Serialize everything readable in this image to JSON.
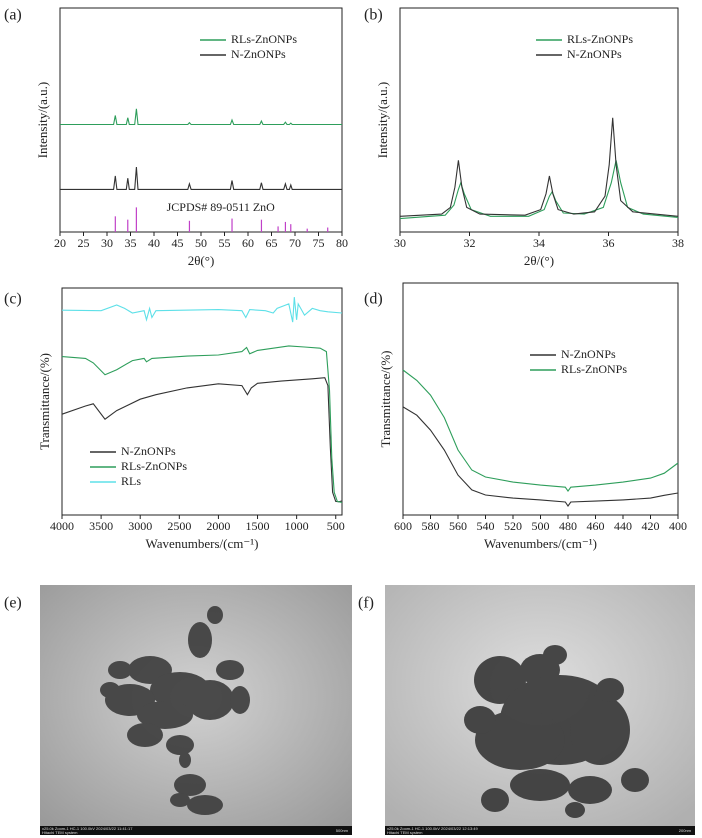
{
  "chart_data": [
    {
      "type": "line",
      "label": "(a)",
      "xlabel": "2θ(°)",
      "ylabel": "Intensity/(a.u.)",
      "xlim": [
        20,
        80
      ],
      "ylim": [
        0,
        100
      ],
      "xticks": [
        20,
        25,
        30,
        35,
        40,
        45,
        50,
        55,
        60,
        65,
        70,
        75,
        80
      ],
      "series": [
        {
          "name": "RLs-ZnONPs",
          "color": "#2e9e5b",
          "x": [
            20,
            31.4,
            31.77,
            32.1,
            34.1,
            34.42,
            34.75,
            35.9,
            36.25,
            36.6,
            47.2,
            47.54,
            47.9,
            56.25,
            56.6,
            56.95,
            62.5,
            62.86,
            63.2,
            67.6,
            67.96,
            68.3,
            68.8,
            69.1,
            69.4,
            80
          ],
          "values": [
            48,
            48,
            52,
            48,
            48,
            51,
            48,
            48,
            55,
            48,
            48,
            48.8,
            48,
            48,
            50,
            48,
            48,
            49.5,
            48,
            48,
            49,
            48,
            48,
            48.6,
            48,
            48
          ]
        },
        {
          "name": "N-ZnONPs",
          "color": "#333333",
          "x": [
            20,
            31.4,
            31.77,
            32.1,
            34.1,
            34.42,
            34.75,
            35.9,
            36.25,
            36.6,
            47.2,
            47.54,
            47.9,
            56.25,
            56.6,
            56.95,
            62.5,
            62.86,
            63.2,
            67.6,
            67.96,
            68.3,
            68.8,
            69.1,
            69.4,
            80
          ],
          "values": [
            19,
            19,
            25,
            19,
            19,
            24,
            19,
            19,
            29,
            19,
            19,
            21.5,
            19,
            19,
            23,
            19,
            19,
            22,
            19,
            19,
            21.5,
            19,
            19,
            21,
            19,
            19
          ]
        }
      ],
      "reference": {
        "label": "JCPDS# 89-0511 ZnO",
        "color": "#c040c8",
        "x": [
          31.77,
          34.42,
          36.25,
          47.54,
          56.6,
          62.86,
          66.4,
          67.96,
          69.1,
          72.6,
          76.96
        ],
        "values": [
          7,
          5.5,
          11,
          5,
          6,
          5.5,
          2.5,
          4.5,
          3.5,
          1.5,
          2
        ]
      }
    },
    {
      "type": "line",
      "label": "(b)",
      "xlabel": "2θ/(°)",
      "ylabel": "Intensity/(a.u.)",
      "xlim": [
        30,
        38
      ],
      "ylim": [
        0,
        100
      ],
      "xticks": [
        30,
        32,
        34,
        36,
        38
      ],
      "series": [
        {
          "name": "RLs-ZnONPs",
          "color": "#2e9e5b",
          "x": [
            30,
            31.3,
            31.55,
            31.68,
            31.75,
            31.85,
            32.05,
            32.6,
            33.7,
            34.15,
            34.3,
            34.38,
            34.48,
            34.7,
            35.3,
            35.85,
            36.08,
            36.22,
            36.35,
            36.55,
            37,
            38
          ],
          "values": [
            6,
            7.5,
            12,
            19,
            22,
            17,
            10,
            7,
            7,
            10,
            16,
            18,
            14,
            8.5,
            8,
            11,
            22,
            32,
            22,
            11,
            8,
            6.5
          ]
        },
        {
          "name": "N-ZnONPs",
          "color": "#333333",
          "x": [
            30,
            31.2,
            31.45,
            31.58,
            31.68,
            31.78,
            31.92,
            32.3,
            33.6,
            34.05,
            34.2,
            34.3,
            34.4,
            34.55,
            35,
            35.6,
            35.9,
            36.02,
            36.12,
            36.22,
            36.35,
            36.7,
            38
          ],
          "values": [
            7,
            8,
            11,
            20,
            32,
            20,
            11,
            8,
            7.5,
            10,
            17,
            25,
            17,
            10,
            8,
            9,
            16,
            30,
            51,
            30,
            14,
            9,
            7
          ]
        }
      ]
    },
    {
      "type": "line",
      "label": "(c)",
      "xlabel": "Wavenumbers/(cm⁻¹)",
      "ylabel": "Transmittance/(%)",
      "xlim": [
        4000,
        420
      ],
      "ylim": [
        0,
        100
      ],
      "xticks": [
        4000,
        3500,
        3000,
        2500,
        2000,
        1500,
        1000,
        500
      ],
      "series": [
        {
          "name": "N-ZnONPs",
          "color": "#333333",
          "x": [
            4000,
            3700,
            3600,
            3450,
            3300,
            3000,
            2800,
            2400,
            2000,
            1700,
            1630,
            1580,
            1500,
            1200,
            1000,
            800,
            640,
            600,
            570,
            540,
            500,
            460,
            420
          ],
          "values": [
            44.4,
            48,
            49,
            42.2,
            46,
            51,
            53,
            56,
            57.8,
            57,
            53,
            56,
            58,
            59,
            59.5,
            60,
            60.5,
            57,
            30,
            10,
            6,
            5.8,
            6.2
          ]
        },
        {
          "name": "RLs-ZnONPs",
          "color": "#2e9e5b",
          "x": [
            4000,
            3700,
            3600,
            3450,
            3300,
            3100,
            2950,
            2920,
            2850,
            2400,
            2000,
            1700,
            1640,
            1600,
            1500,
            1300,
            1100,
            900,
            700,
            620,
            580,
            550,
            520,
            480,
            420
          ],
          "values": [
            69.8,
            69,
            67,
            61.8,
            64,
            68,
            69,
            67.5,
            69,
            70,
            70.5,
            72,
            73.8,
            71,
            72.5,
            73.5,
            74.5,
            74,
            73.5,
            72,
            55,
            25,
            10,
            6,
            5.5
          ]
        },
        {
          "name": "RLs",
          "color": "#5ee0e8",
          "x": [
            4000,
            3500,
            3300,
            3200,
            3100,
            2950,
            2920,
            2880,
            2850,
            2800,
            2000,
            1700,
            1650,
            1600,
            1400,
            1300,
            1250,
            1100,
            1050,
            1030,
            1000,
            980,
            900,
            800,
            700,
            600,
            420
          ],
          "values": [
            90.2,
            90,
            92.5,
            91,
            89,
            90,
            86,
            91,
            87,
            90,
            90.5,
            90,
            87,
            90.5,
            90,
            89,
            91,
            93,
            85,
            96,
            86,
            93,
            88,
            91,
            90,
            89.5,
            89
          ]
        }
      ]
    },
    {
      "type": "line",
      "label": "(d)",
      "xlabel": "Wavenumbers/(cm⁻¹)",
      "ylabel": "Transmittance/(%)",
      "xlim": [
        600,
        400
      ],
      "ylim": [
        0,
        100
      ],
      "xticks": [
        600,
        580,
        560,
        540,
        520,
        500,
        480,
        460,
        440,
        420,
        400
      ],
      "series": [
        {
          "name": "N-ZnONPs",
          "color": "#333333",
          "x": [
            600,
            590,
            580,
            570,
            560,
            550,
            540,
            520,
            500,
            482,
            480,
            478,
            460,
            440,
            420,
            410,
            400
          ],
          "values": [
            46.6,
            43,
            36.6,
            28,
            17.2,
            10.8,
            8.6,
            7.3,
            6.5,
            5.6,
            3.9,
            5.6,
            6,
            6.5,
            7.3,
            8.5,
            9.5
          ]
        },
        {
          "name": "RLs-ZnONPs",
          "color": "#2e9e5b",
          "x": [
            600,
            590,
            580,
            570,
            560,
            550,
            540,
            520,
            500,
            482,
            480,
            478,
            460,
            440,
            420,
            410,
            400
          ],
          "values": [
            62.5,
            58,
            51.7,
            42,
            28,
            19.4,
            16.4,
            14.2,
            12.9,
            12,
            10.3,
            12,
            12.9,
            14.2,
            15.9,
            18,
            22.4
          ]
        }
      ]
    }
  ],
  "images": [
    {
      "label": "(e)",
      "info": "x25.0k Zoom-1 HC-1 100.0kV 2024/03/22 11:41:17",
      "system": "Hitachi TEM system",
      "scale": "500nm"
    },
    {
      "label": "(f)",
      "info": "x25.0k Zoom-1 HC-1 100.0kV 2024/03/22 12:13:49",
      "system": "Hitachi TEM system",
      "scale": "200nm"
    }
  ]
}
